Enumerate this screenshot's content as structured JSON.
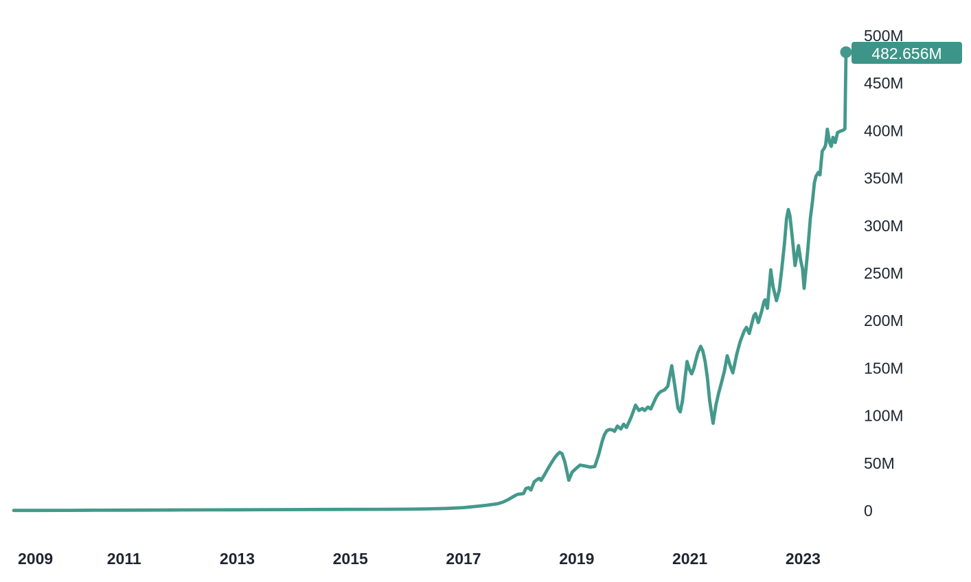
{
  "chart_data": {
    "type": "line",
    "unit": "millions",
    "end_label": "482.656M",
    "end_value_millions": 482.656,
    "grid": false,
    "legend": false,
    "colors": {
      "line": "#43998b",
      "marker": "#43998b",
      "badge_background": "#3d9488",
      "badge_text": "#ffffff",
      "axis_text": "#1f2430",
      "background": "#ffffff"
    },
    "x_axis": {
      "position": "bottom",
      "range": [
        2009.05,
        2023.76
      ],
      "ticks": [
        {
          "value": 2009,
          "label": "2009"
        },
        {
          "value": 2011,
          "label": "2011"
        },
        {
          "value": 2013,
          "label": "2013"
        },
        {
          "value": 2015,
          "label": "2015"
        },
        {
          "value": 2017,
          "label": "2017"
        },
        {
          "value": 2019,
          "label": "2019"
        },
        {
          "value": 2021,
          "label": "2021"
        },
        {
          "value": 2023,
          "label": "2023"
        }
      ]
    },
    "y_axis": {
      "position": "right",
      "range": [
        0,
        500
      ],
      "ticks": [
        {
          "value": 500,
          "label": "500M"
        },
        {
          "value": 450,
          "label": "450M"
        },
        {
          "value": 400,
          "label": "400M"
        },
        {
          "value": 350,
          "label": "350M"
        },
        {
          "value": 300,
          "label": "300M"
        },
        {
          "value": 250,
          "label": "250M"
        },
        {
          "value": 200,
          "label": "200M"
        },
        {
          "value": 150,
          "label": "150M"
        },
        {
          "value": 100,
          "label": "100M"
        },
        {
          "value": 50,
          "label": "50M"
        },
        {
          "value": 0,
          "label": "0"
        }
      ]
    },
    "series": [
      {
        "name": "value",
        "points": [
          [
            2009.05,
            0.2
          ],
          [
            2009.5,
            0.25
          ],
          [
            2010,
            0.3
          ],
          [
            2010.5,
            0.4
          ],
          [
            2011,
            0.5
          ],
          [
            2011.5,
            0.6
          ],
          [
            2012,
            0.7
          ],
          [
            2012.5,
            0.8
          ],
          [
            2013,
            0.9
          ],
          [
            2013.5,
            1.0
          ],
          [
            2014,
            1.1
          ],
          [
            2014.5,
            1.2
          ],
          [
            2015,
            1.3
          ],
          [
            2015.5,
            1.4
          ],
          [
            2016,
            1.55
          ],
          [
            2016.35,
            1.8
          ],
          [
            2016.7,
            2.3
          ],
          [
            2017,
            3.2
          ],
          [
            2017.2,
            4.3
          ],
          [
            2017.4,
            5.6
          ],
          [
            2017.6,
            7.2
          ],
          [
            2017.7,
            9
          ],
          [
            2017.79,
            11.6
          ],
          [
            2017.89,
            15.2
          ],
          [
            2017.96,
            17.3
          ],
          [
            2018.01,
            17.5
          ],
          [
            2018.06,
            18
          ],
          [
            2018.1,
            23.2
          ],
          [
            2018.15,
            24.2
          ],
          [
            2018.19,
            21.7
          ],
          [
            2018.25,
            30.4
          ],
          [
            2018.31,
            33.2
          ],
          [
            2018.34,
            34
          ],
          [
            2018.37,
            31.8
          ],
          [
            2018.43,
            37.6
          ],
          [
            2018.49,
            44
          ],
          [
            2018.55,
            50
          ],
          [
            2018.61,
            55.6
          ],
          [
            2018.66,
            59.3
          ],
          [
            2018.7,
            61.4
          ],
          [
            2018.74,
            60
          ],
          [
            2018.79,
            51.3
          ],
          [
            2018.86,
            32
          ],
          [
            2018.92,
            40.5
          ],
          [
            2019.0,
            45
          ],
          [
            2019.06,
            48
          ],
          [
            2019.15,
            47
          ],
          [
            2019.24,
            45.8
          ],
          [
            2019.32,
            46.5
          ],
          [
            2019.39,
            59
          ],
          [
            2019.45,
            73
          ],
          [
            2019.49,
            80
          ],
          [
            2019.53,
            84
          ],
          [
            2019.58,
            85.5
          ],
          [
            2019.63,
            85
          ],
          [
            2019.67,
            83.5
          ],
          [
            2019.72,
            89
          ],
          [
            2019.78,
            86
          ],
          [
            2019.83,
            91
          ],
          [
            2019.88,
            87.5
          ],
          [
            2019.96,
            98
          ],
          [
            2020.04,
            111
          ],
          [
            2020.1,
            105.5
          ],
          [
            2020.16,
            107.5
          ],
          [
            2020.2,
            105.5
          ],
          [
            2020.26,
            109
          ],
          [
            2020.31,
            107
          ],
          [
            2020.37,
            115
          ],
          [
            2020.41,
            120
          ],
          [
            2020.45,
            123.5
          ],
          [
            2020.49,
            125.5
          ],
          [
            2020.55,
            127
          ],
          [
            2020.61,
            131
          ],
          [
            2020.68,
            152.5
          ],
          [
            2020.73,
            133
          ],
          [
            2020.79,
            108
          ],
          [
            2020.83,
            104
          ],
          [
            2020.87,
            116
          ],
          [
            2020.95,
            157
          ],
          [
            2020.99,
            149
          ],
          [
            2021.03,
            144
          ],
          [
            2021.07,
            150
          ],
          [
            2021.1,
            157
          ],
          [
            2021.14,
            166
          ],
          [
            2021.19,
            173
          ],
          [
            2021.23,
            168
          ],
          [
            2021.27,
            157
          ],
          [
            2021.31,
            140
          ],
          [
            2021.35,
            116
          ],
          [
            2021.41,
            92
          ],
          [
            2021.46,
            111
          ],
          [
            2021.51,
            124
          ],
          [
            2021.56,
            135
          ],
          [
            2021.61,
            147
          ],
          [
            2021.66,
            163
          ],
          [
            2021.71,
            153
          ],
          [
            2021.76,
            145
          ],
          [
            2021.83,
            165
          ],
          [
            2021.89,
            178
          ],
          [
            2021.96,
            189
          ],
          [
            2022.0,
            193
          ],
          [
            2022.05,
            186.5
          ],
          [
            2022.13,
            205
          ],
          [
            2022.16,
            207.5
          ],
          [
            2022.21,
            198
          ],
          [
            2022.27,
            210
          ],
          [
            2022.31,
            220
          ],
          [
            2022.33,
            222
          ],
          [
            2022.37,
            213
          ],
          [
            2022.43,
            253.5
          ],
          [
            2022.47,
            236
          ],
          [
            2022.53,
            221
          ],
          [
            2022.58,
            232
          ],
          [
            2022.62,
            252
          ],
          [
            2022.67,
            280
          ],
          [
            2022.71,
            308
          ],
          [
            2022.74,
            317
          ],
          [
            2022.77,
            310
          ],
          [
            2022.81,
            288
          ],
          [
            2022.86,
            258
          ],
          [
            2022.92,
            279
          ],
          [
            2022.96,
            263
          ],
          [
            2022.99,
            255
          ],
          [
            2023.02,
            234
          ],
          [
            2023.08,
            272
          ],
          [
            2023.13,
            308
          ],
          [
            2023.17,
            327
          ],
          [
            2023.2,
            345
          ],
          [
            2023.23,
            352
          ],
          [
            2023.27,
            356
          ],
          [
            2023.3,
            353.5
          ],
          [
            2023.34,
            378.5
          ],
          [
            2023.38,
            382
          ],
          [
            2023.4,
            385
          ],
          [
            2023.43,
            401.5
          ],
          [
            2023.47,
            387.5
          ],
          [
            2023.5,
            383.5
          ],
          [
            2023.53,
            393
          ],
          [
            2023.57,
            387.5
          ],
          [
            2023.61,
            398
          ],
          [
            2023.66,
            399.5
          ],
          [
            2023.71,
            400.5
          ],
          [
            2023.74,
            402
          ],
          [
            2023.76,
            482.656
          ]
        ]
      }
    ]
  }
}
